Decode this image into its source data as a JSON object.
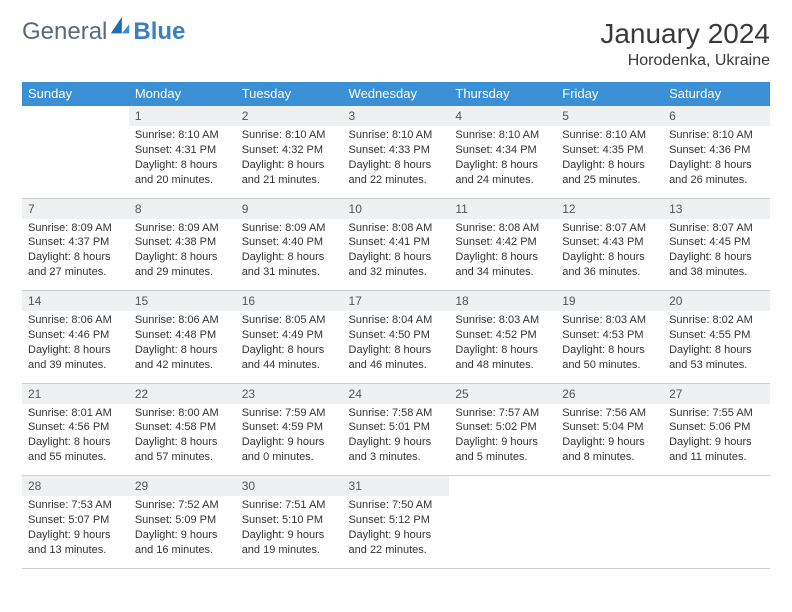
{
  "brand": {
    "word1": "General",
    "word2": "Blue"
  },
  "title": "January 2024",
  "location": "Horodenka, Ukraine",
  "colors": {
    "header_bg": "#3b8fd4",
    "header_text": "#ffffff",
    "daynum_bg": "#eef0f1",
    "rule": "#3b8fd4",
    "text": "#333333",
    "logo_gray": "#5a6a7a",
    "logo_blue": "#3b7fc4"
  },
  "day_names": [
    "Sunday",
    "Monday",
    "Tuesday",
    "Wednesday",
    "Thursday",
    "Friday",
    "Saturday"
  ],
  "weeks": [
    [
      {
        "n": "",
        "sr": "",
        "ss": "",
        "dl": ""
      },
      {
        "n": "1",
        "sr": "Sunrise: 8:10 AM",
        "ss": "Sunset: 4:31 PM",
        "dl": "Daylight: 8 hours and 20 minutes."
      },
      {
        "n": "2",
        "sr": "Sunrise: 8:10 AM",
        "ss": "Sunset: 4:32 PM",
        "dl": "Daylight: 8 hours and 21 minutes."
      },
      {
        "n": "3",
        "sr": "Sunrise: 8:10 AM",
        "ss": "Sunset: 4:33 PM",
        "dl": "Daylight: 8 hours and 22 minutes."
      },
      {
        "n": "4",
        "sr": "Sunrise: 8:10 AM",
        "ss": "Sunset: 4:34 PM",
        "dl": "Daylight: 8 hours and 24 minutes."
      },
      {
        "n": "5",
        "sr": "Sunrise: 8:10 AM",
        "ss": "Sunset: 4:35 PM",
        "dl": "Daylight: 8 hours and 25 minutes."
      },
      {
        "n": "6",
        "sr": "Sunrise: 8:10 AM",
        "ss": "Sunset: 4:36 PM",
        "dl": "Daylight: 8 hours and 26 minutes."
      }
    ],
    [
      {
        "n": "7",
        "sr": "Sunrise: 8:09 AM",
        "ss": "Sunset: 4:37 PM",
        "dl": "Daylight: 8 hours and 27 minutes."
      },
      {
        "n": "8",
        "sr": "Sunrise: 8:09 AM",
        "ss": "Sunset: 4:38 PM",
        "dl": "Daylight: 8 hours and 29 minutes."
      },
      {
        "n": "9",
        "sr": "Sunrise: 8:09 AM",
        "ss": "Sunset: 4:40 PM",
        "dl": "Daylight: 8 hours and 31 minutes."
      },
      {
        "n": "10",
        "sr": "Sunrise: 8:08 AM",
        "ss": "Sunset: 4:41 PM",
        "dl": "Daylight: 8 hours and 32 minutes."
      },
      {
        "n": "11",
        "sr": "Sunrise: 8:08 AM",
        "ss": "Sunset: 4:42 PM",
        "dl": "Daylight: 8 hours and 34 minutes."
      },
      {
        "n": "12",
        "sr": "Sunrise: 8:07 AM",
        "ss": "Sunset: 4:43 PM",
        "dl": "Daylight: 8 hours and 36 minutes."
      },
      {
        "n": "13",
        "sr": "Sunrise: 8:07 AM",
        "ss": "Sunset: 4:45 PM",
        "dl": "Daylight: 8 hours and 38 minutes."
      }
    ],
    [
      {
        "n": "14",
        "sr": "Sunrise: 8:06 AM",
        "ss": "Sunset: 4:46 PM",
        "dl": "Daylight: 8 hours and 39 minutes."
      },
      {
        "n": "15",
        "sr": "Sunrise: 8:06 AM",
        "ss": "Sunset: 4:48 PM",
        "dl": "Daylight: 8 hours and 42 minutes."
      },
      {
        "n": "16",
        "sr": "Sunrise: 8:05 AM",
        "ss": "Sunset: 4:49 PM",
        "dl": "Daylight: 8 hours and 44 minutes."
      },
      {
        "n": "17",
        "sr": "Sunrise: 8:04 AM",
        "ss": "Sunset: 4:50 PM",
        "dl": "Daylight: 8 hours and 46 minutes."
      },
      {
        "n": "18",
        "sr": "Sunrise: 8:03 AM",
        "ss": "Sunset: 4:52 PM",
        "dl": "Daylight: 8 hours and 48 minutes."
      },
      {
        "n": "19",
        "sr": "Sunrise: 8:03 AM",
        "ss": "Sunset: 4:53 PM",
        "dl": "Daylight: 8 hours and 50 minutes."
      },
      {
        "n": "20",
        "sr": "Sunrise: 8:02 AM",
        "ss": "Sunset: 4:55 PM",
        "dl": "Daylight: 8 hours and 53 minutes."
      }
    ],
    [
      {
        "n": "21",
        "sr": "Sunrise: 8:01 AM",
        "ss": "Sunset: 4:56 PM",
        "dl": "Daylight: 8 hours and 55 minutes."
      },
      {
        "n": "22",
        "sr": "Sunrise: 8:00 AM",
        "ss": "Sunset: 4:58 PM",
        "dl": "Daylight: 8 hours and 57 minutes."
      },
      {
        "n": "23",
        "sr": "Sunrise: 7:59 AM",
        "ss": "Sunset: 4:59 PM",
        "dl": "Daylight: 9 hours and 0 minutes."
      },
      {
        "n": "24",
        "sr": "Sunrise: 7:58 AM",
        "ss": "Sunset: 5:01 PM",
        "dl": "Daylight: 9 hours and 3 minutes."
      },
      {
        "n": "25",
        "sr": "Sunrise: 7:57 AM",
        "ss": "Sunset: 5:02 PM",
        "dl": "Daylight: 9 hours and 5 minutes."
      },
      {
        "n": "26",
        "sr": "Sunrise: 7:56 AM",
        "ss": "Sunset: 5:04 PM",
        "dl": "Daylight: 9 hours and 8 minutes."
      },
      {
        "n": "27",
        "sr": "Sunrise: 7:55 AM",
        "ss": "Sunset: 5:06 PM",
        "dl": "Daylight: 9 hours and 11 minutes."
      }
    ],
    [
      {
        "n": "28",
        "sr": "Sunrise: 7:53 AM",
        "ss": "Sunset: 5:07 PM",
        "dl": "Daylight: 9 hours and 13 minutes."
      },
      {
        "n": "29",
        "sr": "Sunrise: 7:52 AM",
        "ss": "Sunset: 5:09 PM",
        "dl": "Daylight: 9 hours and 16 minutes."
      },
      {
        "n": "30",
        "sr": "Sunrise: 7:51 AM",
        "ss": "Sunset: 5:10 PM",
        "dl": "Daylight: 9 hours and 19 minutes."
      },
      {
        "n": "31",
        "sr": "Sunrise: 7:50 AM",
        "ss": "Sunset: 5:12 PM",
        "dl": "Daylight: 9 hours and 22 minutes."
      },
      {
        "n": "",
        "sr": "",
        "ss": "",
        "dl": ""
      },
      {
        "n": "",
        "sr": "",
        "ss": "",
        "dl": ""
      },
      {
        "n": "",
        "sr": "",
        "ss": "",
        "dl": ""
      }
    ]
  ]
}
